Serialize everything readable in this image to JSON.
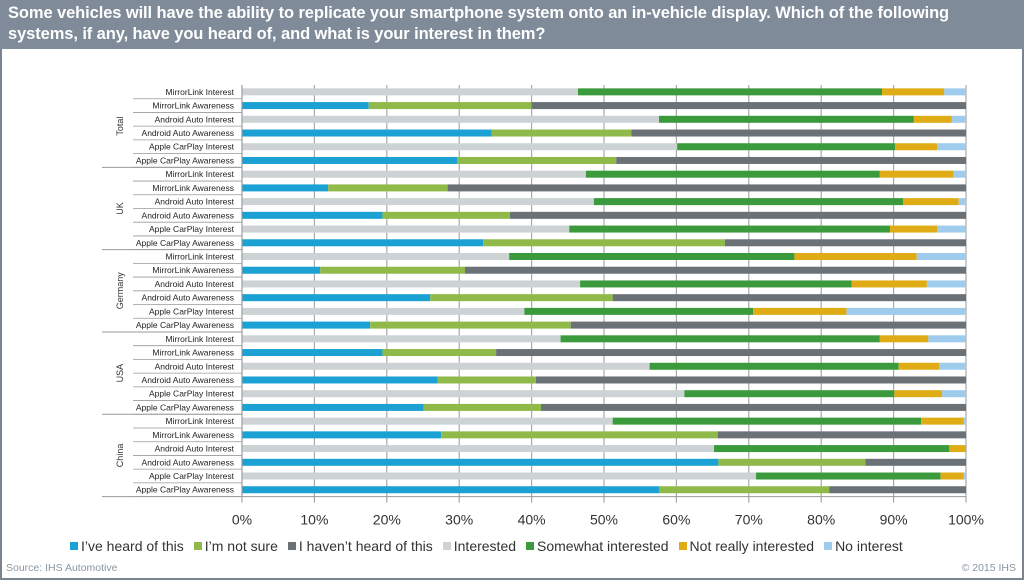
{
  "title": "Some vehicles will have the ability to replicate your smartphone system onto an in-vehicle display. Which of the following systems, if any, have you heard of, and what is your interest in them?",
  "source": "Source: IHS Automotive",
  "copyright": "© 2015 IHS",
  "chart_data": {
    "type": "bar",
    "orientation": "horizontal",
    "stacked": "100%",
    "title": "Some vehicles will have the ability to replicate your smartphone system onto an in-vehicle display. Which of the following systems, if any, have you heard of, and what is your interest in them?",
    "xlabel": "",
    "ylabel": "",
    "xlim": [
      0,
      100
    ],
    "x_ticks": [
      "0%",
      "10%",
      "20%",
      "30%",
      "40%",
      "50%",
      "60%",
      "70%",
      "80%",
      "90%",
      "100%"
    ],
    "grid": "vertical",
    "legend_position": "bottom",
    "legend": [
      {
        "name": "I've heard of this",
        "color": "#1ba1d4"
      },
      {
        "name": "I'm not sure",
        "color": "#8fba4a"
      },
      {
        "name": "I haven't heard of this",
        "color": "#6a7177"
      },
      {
        "name": "Interested",
        "color": "#cdd2d5"
      },
      {
        "name": "Somewhat interested",
        "color": "#3a9a3c"
      },
      {
        "name": "Not really interested",
        "color": "#dfac15"
      },
      {
        "name": "No interest",
        "color": "#9fcbec"
      }
    ],
    "groups": [
      {
        "name": "Total",
        "rows": [
          {
            "label": "MirrorLink Interest",
            "kind": "interest",
            "values": [
              46.4,
              42.0,
              8.6,
              3.0
            ]
          },
          {
            "label": "MirrorLink Awareness",
            "kind": "awareness",
            "values": [
              17.5,
              22.5,
              60.0
            ]
          },
          {
            "label": "Android Auto Interest",
            "kind": "interest",
            "values": [
              57.6,
              35.2,
              5.2,
              2.0
            ]
          },
          {
            "label": "Android Auto Awareness",
            "kind": "awareness",
            "values": [
              34.5,
              19.3,
              46.2
            ]
          },
          {
            "label": "Apple CarPlay Interest",
            "kind": "interest",
            "values": [
              60.1,
              30.1,
              5.8,
              4.0
            ]
          },
          {
            "label": "Apple CarPlay Awareness",
            "kind": "awareness",
            "values": [
              29.7,
              22.0,
              48.3
            ]
          }
        ]
      },
      {
        "name": "UK",
        "rows": [
          {
            "label": "MirrorLink Interest",
            "kind": "interest",
            "values": [
              47.5,
              40.6,
              10.2,
              1.7
            ]
          },
          {
            "label": "MirrorLink Awareness",
            "kind": "awareness",
            "values": [
              11.9,
              16.5,
              71.6
            ]
          },
          {
            "label": "Android Auto Interest",
            "kind": "interest",
            "values": [
              48.6,
              42.7,
              7.7,
              1.0
            ]
          },
          {
            "label": "Android Auto Awareness",
            "kind": "awareness",
            "values": [
              19.4,
              17.6,
              63.0
            ]
          },
          {
            "label": "Apple CarPlay Interest",
            "kind": "interest",
            "values": [
              45.2,
              44.3,
              6.5,
              4.0
            ]
          },
          {
            "label": "Apple CarPlay Awareness",
            "kind": "awareness",
            "values": [
              33.3,
              33.4,
              33.3
            ]
          }
        ]
      },
      {
        "name": "Germany",
        "rows": [
          {
            "label": "MirrorLink Interest",
            "kind": "interest",
            "values": [
              36.9,
              39.4,
              16.9,
              6.8
            ]
          },
          {
            "label": "MirrorLink Awareness",
            "kind": "awareness",
            "values": [
              10.8,
              20.0,
              69.2
            ]
          },
          {
            "label": "Android Auto Interest",
            "kind": "interest",
            "values": [
              46.7,
              37.5,
              10.4,
              5.4
            ]
          },
          {
            "label": "Android Auto Awareness",
            "kind": "awareness",
            "values": [
              26.0,
              25.2,
              48.8
            ]
          },
          {
            "label": "Apple CarPlay Interest",
            "kind": "interest",
            "values": [
              39.0,
              31.6,
              12.9,
              16.5
            ]
          },
          {
            "label": "Apple CarPlay Awareness",
            "kind": "awareness",
            "values": [
              17.7,
              27.7,
              54.6
            ]
          }
        ]
      },
      {
        "name": "USA",
        "rows": [
          {
            "label": "MirrorLink Interest",
            "kind": "interest",
            "values": [
              44.0,
              44.1,
              6.7,
              5.2
            ]
          },
          {
            "label": "MirrorLink Awareness",
            "kind": "awareness",
            "values": [
              19.4,
              15.7,
              64.9
            ]
          },
          {
            "label": "Android Auto Interest",
            "kind": "interest",
            "values": [
              56.3,
              34.4,
              5.6,
              3.7
            ]
          },
          {
            "label": "Android Auto Awareness",
            "kind": "awareness",
            "values": [
              27.0,
              13.6,
              59.4
            ]
          },
          {
            "label": "Apple CarPlay Interest",
            "kind": "interest",
            "values": [
              61.1,
              29.0,
              6.6,
              3.3
            ]
          },
          {
            "label": "Apple CarPlay Awareness",
            "kind": "awareness",
            "values": [
              25.1,
              16.2,
              58.7
            ]
          }
        ]
      },
      {
        "name": "China",
        "rows": [
          {
            "label": "MirrorLink Interest",
            "kind": "interest",
            "values": [
              51.2,
              42.6,
              5.9,
              0.3
            ]
          },
          {
            "label": "MirrorLink Awareness",
            "kind": "awareness",
            "values": [
              27.5,
              38.2,
              34.3
            ]
          },
          {
            "label": "Android Auto Interest",
            "kind": "interest",
            "values": [
              65.2,
              32.5,
              2.3,
              0.0
            ]
          },
          {
            "label": "Android Auto Awareness",
            "kind": "awareness",
            "values": [
              65.8,
              20.3,
              13.9
            ]
          },
          {
            "label": "Apple CarPlay Interest",
            "kind": "interest",
            "values": [
              71.0,
              25.5,
              3.2,
              0.3
            ]
          },
          {
            "label": "Apple CarPlay Awareness",
            "kind": "awareness",
            "values": [
              57.6,
              23.5,
              18.9
            ]
          }
        ]
      }
    ]
  }
}
